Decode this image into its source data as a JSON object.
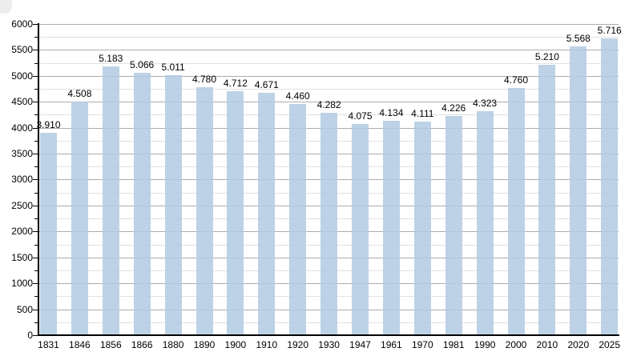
{
  "page": {
    "background": "#ffffff"
  },
  "chart_data": {
    "type": "bar",
    "title": "",
    "xlabel": "",
    "ylabel": "",
    "categories": [
      "1831",
      "1846",
      "1856",
      "1866",
      "1880",
      "1890",
      "1900",
      "1910",
      "1920",
      "1930",
      "1947",
      "1961",
      "1970",
      "1981",
      "1990",
      "2000",
      "2010",
      "2020",
      "2025"
    ],
    "values": [
      3910,
      4508,
      5183,
      5066,
      5011,
      4780,
      4712,
      4671,
      4460,
      4282,
      4075,
      4134,
      4111,
      4226,
      4323,
      4760,
      5210,
      5568,
      5716
    ],
    "value_labels": [
      "3.910",
      "4.508",
      "5.183",
      "5.066",
      "5.011",
      "4.780",
      "4.712",
      "4.671",
      "4.460",
      "4.282",
      "4.075",
      "4.134",
      "4.111",
      "4.226",
      "4.323",
      "4.760",
      "5.210",
      "5.568",
      "5.716"
    ],
    "ylim": [
      0,
      6000
    ],
    "y_major_step": 500,
    "y_minor_step": 250,
    "y_tick_labels": [
      "0",
      "500",
      "1000",
      "1500",
      "2000",
      "2500",
      "3000",
      "3500",
      "4000",
      "4500",
      "5000",
      "5500",
      "6000"
    ],
    "grid": "on",
    "legend": "none",
    "colors": {
      "bar": "#B3CBE2",
      "bar_opacity": 0.87,
      "major_gridline": "#ADADAD",
      "minor_gridline": "#E2E2E2",
      "axis": "#000000",
      "label_text": "#000000",
      "background": "#FFFFFF"
    }
  }
}
